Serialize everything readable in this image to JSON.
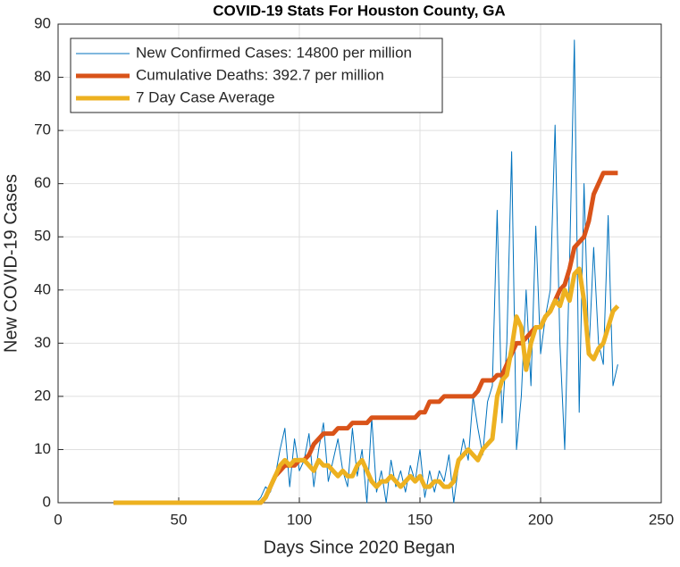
{
  "chart_data": {
    "type": "line",
    "title": "COVID-19 Stats For Houston County, GA",
    "xlabel": "Days Since 2020 Began",
    "ylabel": "New COVID-19 Cases",
    "x": [
      23,
      78,
      80,
      82,
      84,
      86,
      88,
      90,
      92,
      94,
      96,
      98,
      100,
      102,
      104,
      106,
      108,
      110,
      112,
      114,
      116,
      118,
      120,
      122,
      124,
      126,
      128,
      130,
      132,
      134,
      136,
      138,
      140,
      142,
      144,
      146,
      148,
      150,
      152,
      154,
      156,
      158,
      160,
      162,
      164,
      166,
      168,
      170,
      172,
      174,
      176,
      178,
      180,
      182,
      184,
      186,
      188,
      190,
      192,
      194,
      196,
      198,
      200,
      202,
      204,
      206,
      208,
      210,
      212,
      214,
      216,
      218,
      220,
      222,
      224,
      226,
      228,
      230,
      232
    ],
    "series": [
      {
        "name": "New Confirmed Cases: 14800 per million",
        "color": "#0072bd",
        "width": 1,
        "values": [
          0,
          0,
          0,
          0,
          1,
          3,
          2,
          5,
          10,
          14,
          3,
          12,
          6,
          8,
          13,
          3,
          10,
          15,
          4,
          8,
          12,
          6,
          3,
          14,
          5,
          10,
          0,
          16,
          2,
          6,
          0,
          8,
          3,
          6,
          2,
          7,
          4,
          10,
          1,
          6,
          2,
          6,
          4,
          9,
          0,
          7,
          12,
          8,
          20,
          14,
          9,
          19,
          22,
          55,
          15,
          30,
          66,
          10,
          20,
          40,
          22,
          52,
          28,
          35,
          40,
          71,
          30,
          10,
          45,
          87,
          17,
          60,
          28,
          48,
          30,
          26,
          54,
          22,
          26
        ]
      },
      {
        "name": "Cumulative Deaths: 392.7 per million",
        "color": "#d95319",
        "width": 5,
        "values": [
          0,
          0,
          0,
          0,
          0,
          1,
          3,
          5,
          6,
          7,
          7,
          7,
          8,
          8,
          9,
          11,
          12,
          13,
          13,
          13,
          14,
          14,
          14,
          15,
          15,
          15,
          15,
          16,
          16,
          16,
          16,
          16,
          16,
          16,
          16,
          16,
          16,
          17,
          17,
          19,
          19,
          19,
          20,
          20,
          20,
          20,
          20,
          20,
          20,
          21,
          23,
          23,
          23,
          24,
          24,
          26,
          28,
          30,
          30,
          31,
          32,
          33,
          33,
          35,
          36,
          38,
          40,
          41,
          44,
          48,
          49,
          50,
          53,
          58,
          60,
          62,
          62,
          62,
          62
        ]
      },
      {
        "name": "7 Day Case Average",
        "color": "#edb120",
        "width": 5,
        "values": [
          0,
          0,
          0,
          0,
          0,
          1,
          3,
          5,
          7,
          8,
          7,
          8,
          8,
          8,
          7,
          6,
          8,
          7,
          7,
          6,
          5,
          6,
          5,
          5,
          7,
          8,
          6,
          4,
          3,
          4,
          4,
          5,
          4,
          3,
          4,
          5,
          4,
          5,
          3,
          3,
          4,
          4,
          3,
          3,
          4,
          8,
          9,
          10,
          9,
          8,
          10,
          11,
          12,
          20,
          23,
          24,
          29,
          35,
          33,
          25,
          30,
          33,
          33,
          35,
          36,
          38,
          37,
          40,
          38,
          43,
          44,
          38,
          28,
          27,
          29,
          30,
          33,
          36,
          37
        ]
      }
    ],
    "xlim": [
      0,
      250
    ],
    "xticks": [
      0,
      50,
      100,
      150,
      200,
      250
    ],
    "ylim": [
      0,
      90
    ],
    "yticks": [
      0,
      10,
      20,
      30,
      40,
      50,
      60,
      70,
      80,
      90
    ],
    "grid": true,
    "legend": "top-left"
  }
}
